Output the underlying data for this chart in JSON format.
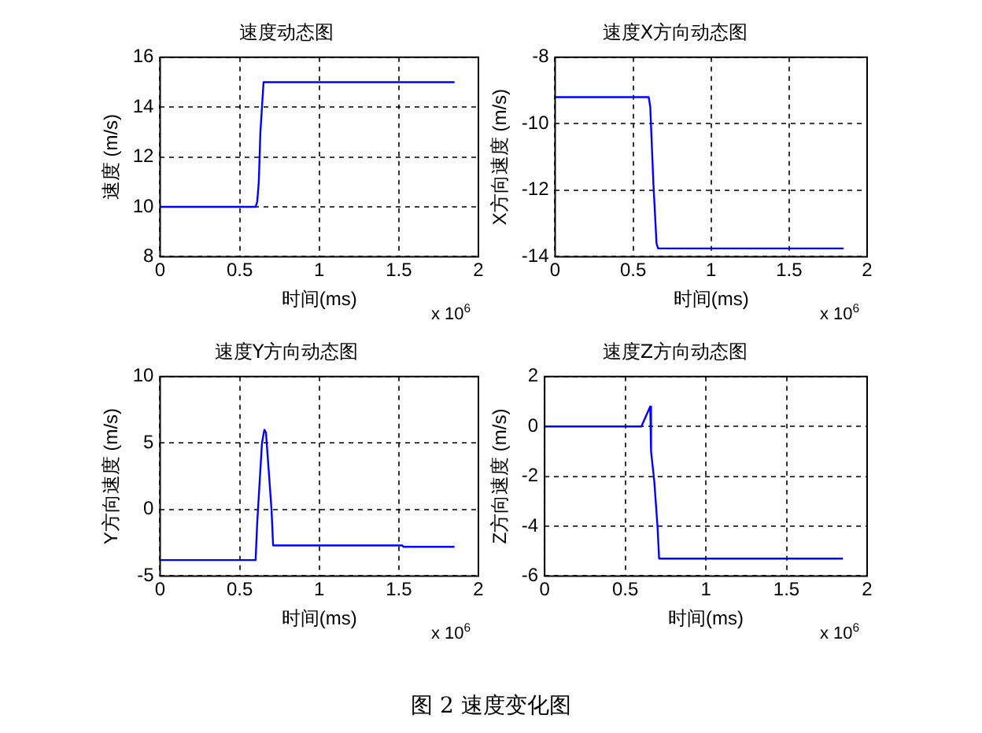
{
  "chart_data": [
    {
      "type": "line",
      "title": "速度动态图",
      "xlabel": "时间(ms)",
      "ylabel": "速度 (m/s)",
      "annotations": [
        "x 10$^{6}$"
      ],
      "grid": true,
      "legend": false,
      "marker": "none",
      "line_style": "solid",
      "xlim": [
        0,
        2
      ],
      "xticks": [
        0,
        0.5,
        1,
        1.5,
        2
      ],
      "ylim": [
        8,
        16
      ],
      "yticks": [
        8,
        10,
        12,
        14,
        16
      ],
      "series": [
        {
          "color": "#0000ff",
          "x": [
            0,
            0.6,
            0.61,
            0.62,
            0.63,
            0.65,
            1.85
          ],
          "values": [
            10,
            10,
            10.2,
            11,
            13,
            15,
            15
          ]
        }
      ]
    },
    {
      "type": "line",
      "title": "速度X方向动态图",
      "xlabel": "时间(ms)",
      "ylabel": "X方向速度 (m/s)",
      "annotations": [
        "x 10$^{6}$"
      ],
      "grid": true,
      "legend": false,
      "marker": "none",
      "line_style": "solid",
      "xlim": [
        0,
        2
      ],
      "xticks": [
        0,
        0.5,
        1,
        1.5,
        2
      ],
      "ylim": [
        -14,
        -8
      ],
      "yticks": [
        -14,
        -12,
        -10,
        -8
      ],
      "series": [
        {
          "color": "#0000ff",
          "x": [
            0,
            0.6,
            0.61,
            0.63,
            0.65,
            0.66,
            1.85
          ],
          "values": [
            -9.2,
            -9.2,
            -9.5,
            -11.8,
            -13.6,
            -13.75,
            -13.75
          ]
        }
      ]
    },
    {
      "type": "line",
      "title": "速度Y方向动态图",
      "xlabel": "时间(ms)",
      "ylabel": "Y方向速度 (m/s)",
      "annotations": [
        "x 10$^{6}$"
      ],
      "grid": true,
      "legend": false,
      "marker": "none",
      "line_style": "solid",
      "xlim": [
        0,
        2
      ],
      "xticks": [
        0,
        0.5,
        1,
        1.5,
        2
      ],
      "ylim": [
        -5,
        10
      ],
      "yticks": [
        -5,
        0,
        5,
        10
      ],
      "series": [
        {
          "color": "#0000ff",
          "x": [
            0,
            0.6,
            0.61,
            0.64,
            0.655,
            0.665,
            0.7,
            0.71,
            1.52,
            1.53,
            1.85
          ],
          "values": [
            -3.8,
            -3.8,
            -1,
            5,
            6,
            5.8,
            0,
            -2.7,
            -2.7,
            -2.8,
            -2.8
          ]
        }
      ]
    },
    {
      "type": "line",
      "title": "速度Z方向动态图",
      "xlabel": "时间(ms)",
      "ylabel": "Z方向速度 (m/s)",
      "annotations": [
        "x 10$^{6}$",
        "图 2  速度变化图"
      ],
      "grid": true,
      "legend": false,
      "marker": "none",
      "line_style": "solid",
      "xlim": [
        0,
        2
      ],
      "xticks": [
        0,
        0.5,
        1,
        1.5,
        2
      ],
      "ylim": [
        -6,
        2
      ],
      "yticks": [
        -6,
        -4,
        -2,
        0,
        2
      ],
      "series": [
        {
          "color": "#0000ff",
          "x": [
            0,
            0.6,
            0.655,
            0.66,
            0.68,
            0.7,
            0.71,
            1.85
          ],
          "values": [
            0,
            0,
            0.8,
            -1,
            -2.2,
            -4,
            -5.3,
            -5.3
          ]
        }
      ]
    }
  ]
}
